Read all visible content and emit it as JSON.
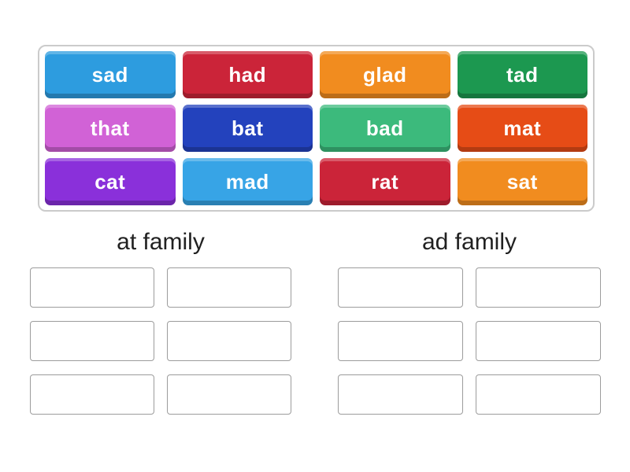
{
  "ui": {
    "background": "#ffffff",
    "bank_border": "#cbcbcb",
    "slot_border": "#9c9c9c",
    "title_color": "#212121",
    "tile_text_color": "#ffffff"
  },
  "word_bank": {
    "tiles": [
      {
        "word": "sad",
        "color": "#2d9cdf"
      },
      {
        "word": "had",
        "color": "#cb2439"
      },
      {
        "word": "glad",
        "color": "#f18c1f"
      },
      {
        "word": "tad",
        "color": "#1c9850"
      },
      {
        "word": "that",
        "color": "#d162d6"
      },
      {
        "word": "bat",
        "color": "#2342bd"
      },
      {
        "word": "bad",
        "color": "#3cba7c"
      },
      {
        "word": "mat",
        "color": "#e64c16"
      },
      {
        "word": "cat",
        "color": "#8a30da"
      },
      {
        "word": "mad",
        "color": "#37a4e6"
      },
      {
        "word": "rat",
        "color": "#cb2439"
      },
      {
        "word": "sat",
        "color": "#f18c1f"
      }
    ]
  },
  "groups": [
    {
      "label": "at family",
      "slot_count": 6
    },
    {
      "label": "ad family",
      "slot_count": 6
    }
  ]
}
